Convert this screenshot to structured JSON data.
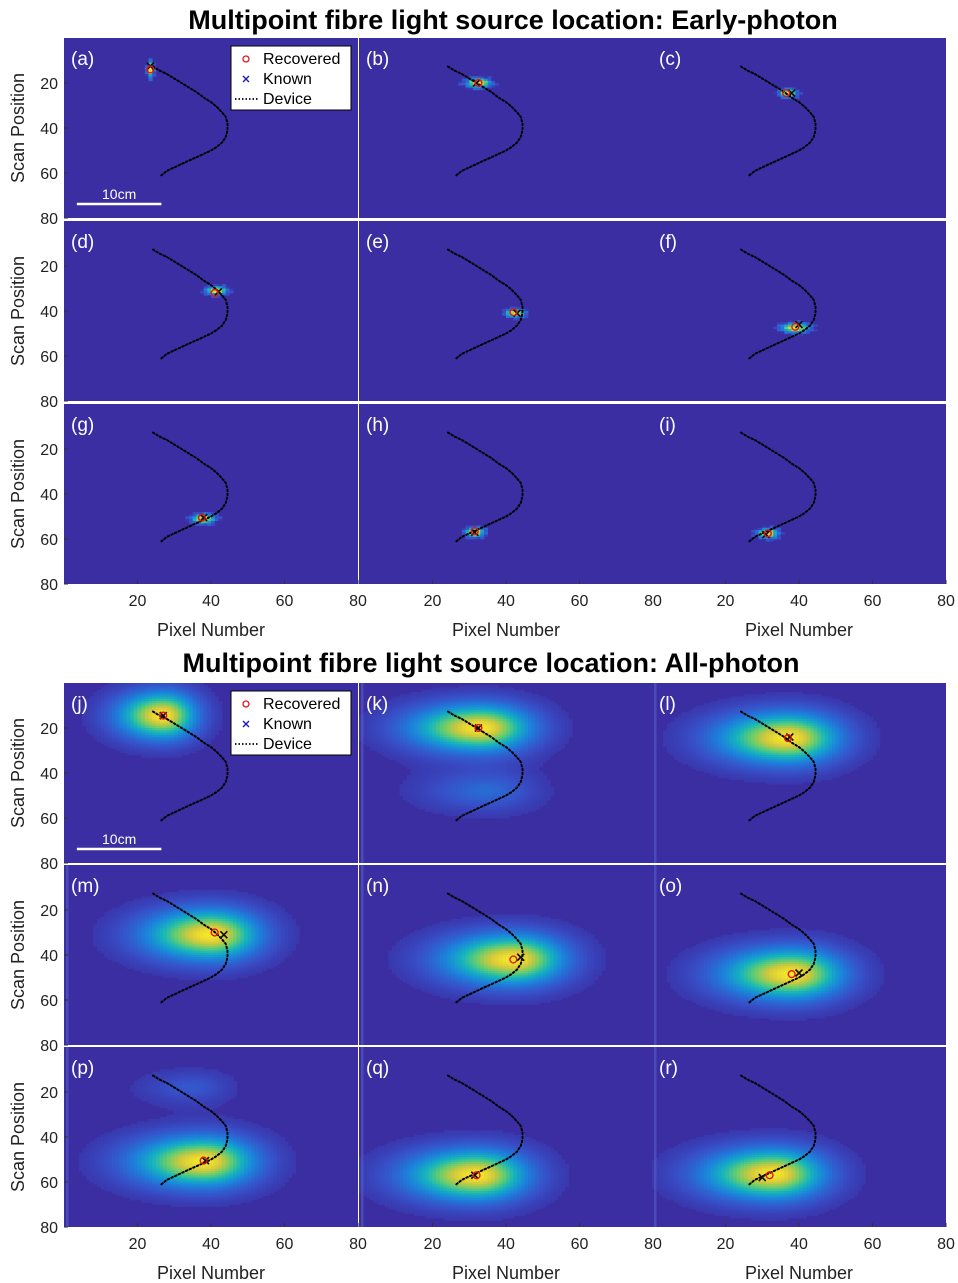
{
  "figure": {
    "sections": [
      {
        "title": "Multipoint fibre light source location: Early-photon",
        "mode": "early"
      },
      {
        "title": "Multipoint fibre light source location: All-photon",
        "mode": "all"
      }
    ],
    "xlabel": "Pixel Number",
    "ylabel": "Scan Position",
    "xticks": [
      20,
      40,
      60,
      80
    ],
    "yticks": [
      20,
      40,
      60,
      80
    ],
    "xlim": [
      0,
      80
    ],
    "ylim": [
      0,
      80
    ],
    "legend": {
      "recovered": "Recovered",
      "known": "Known",
      "device": "Device",
      "placement": "top-right of first panel"
    },
    "scalebar_label": "10cm",
    "scalebar_length": 23,
    "colors": {
      "background": "#3b2ea3",
      "recovered": "#e01818",
      "known": "#1b1bbd",
      "device": "#000000"
    }
  },
  "chart_data": {
    "type": "heatmap",
    "device_path": [
      [
        26.5,
        61
      ],
      [
        28,
        59
      ],
      [
        30,
        57.5
      ],
      [
        32,
        56
      ],
      [
        34,
        54.5
      ],
      [
        36,
        53
      ],
      [
        38,
        51.5
      ],
      [
        40,
        50
      ],
      [
        41.5,
        48.5
      ],
      [
        43,
        46.5
      ],
      [
        44,
        44
      ],
      [
        44.5,
        41
      ],
      [
        44.5,
        38
      ],
      [
        44,
        35
      ],
      [
        43,
        33
      ],
      [
        41.5,
        30.5
      ],
      [
        40,
        28.5
      ],
      [
        38,
        26.5
      ],
      [
        36,
        24
      ],
      [
        34,
        22
      ],
      [
        32,
        20
      ],
      [
        30,
        18
      ],
      [
        28,
        16
      ],
      [
        26,
        14.5
      ],
      [
        24,
        12.5
      ]
    ],
    "panels": [
      {
        "label": "(a)",
        "mode": "early",
        "recovered": [
          23.5,
          14
        ],
        "known": [
          23.5,
          12.5
        ],
        "blobs": [
          {
            "x": 23.5,
            "y": 14,
            "sx": 0.7,
            "sy": 3.0,
            "a": 1.0
          }
        ]
      },
      {
        "label": "(b)",
        "mode": "early",
        "recovered": [
          32.5,
          20
        ],
        "known": [
          32,
          20
        ],
        "blobs": [
          {
            "x": 32.5,
            "y": 20,
            "sx": 2.8,
            "sy": 1.8,
            "a": 1.0
          }
        ]
      },
      {
        "label": "(c)",
        "mode": "early",
        "recovered": [
          36.5,
          24.5
        ],
        "known": [
          38,
          24.5
        ],
        "blobs": [
          {
            "x": 37,
            "y": 24.5,
            "sx": 2.0,
            "sy": 1.6,
            "a": 1.0
          }
        ]
      },
      {
        "label": "(d)",
        "mode": "early",
        "recovered": [
          41,
          32
        ],
        "known": [
          42,
          31.5
        ],
        "blobs": [
          {
            "x": 41.5,
            "y": 31,
            "sx": 2.4,
            "sy": 1.6,
            "a": 1.0
          }
        ]
      },
      {
        "label": "(e)",
        "mode": "early",
        "recovered": [
          42,
          40.5
        ],
        "known": [
          43,
          41
        ],
        "blobs": [
          {
            "x": 42.5,
            "y": 41,
            "sx": 2.2,
            "sy": 1.5,
            "a": 1.0
          }
        ]
      },
      {
        "label": "(f)",
        "mode": "early",
        "recovered": [
          39,
          47
        ],
        "known": [
          40,
          46
        ],
        "blobs": [
          {
            "x": 39,
            "y": 47.5,
            "sx": 3.2,
            "sy": 1.8,
            "a": 1.0
          }
        ]
      },
      {
        "label": "(g)",
        "mode": "early",
        "recovered": [
          37.5,
          50.5
        ],
        "known": [
          38,
          50.5
        ],
        "blobs": [
          {
            "x": 38,
            "y": 51,
            "sx": 2.6,
            "sy": 1.8,
            "a": 1.0
          }
        ]
      },
      {
        "label": "(h)",
        "mode": "early",
        "recovered": [
          31.5,
          56.5
        ],
        "known": [
          31.5,
          57
        ],
        "blobs": [
          {
            "x": 31.5,
            "y": 57,
            "sx": 2.2,
            "sy": 1.8,
            "a": 1.0
          }
        ]
      },
      {
        "label": "(i)",
        "mode": "early",
        "recovered": [
          31.5,
          57.5
        ],
        "known": [
          31,
          58
        ],
        "blobs": [
          {
            "x": 31.5,
            "y": 57.5,
            "sx": 2.4,
            "sy": 1.8,
            "a": 1.0
          }
        ]
      },
      {
        "label": "(j)",
        "mode": "all",
        "recovered": [
          27,
          14.5
        ],
        "known": [
          27,
          14.5
        ],
        "blobs": [
          {
            "x": 27,
            "y": 14.5,
            "sx": 6.5,
            "sy": 6.5,
            "a": 1.0
          }
        ]
      },
      {
        "label": "(k)",
        "mode": "all",
        "recovered": [
          32.5,
          20
        ],
        "known": [
          32.5,
          20
        ],
        "blobs": [
          {
            "x": 33,
            "y": 20,
            "sx": 10,
            "sy": 6.5,
            "a": 1.0
          },
          {
            "x": 35,
            "y": 48,
            "sx": 10,
            "sy": 6,
            "a": 0.22
          }
        ]
      },
      {
        "label": "(l)",
        "mode": "all",
        "recovered": [
          37,
          24.5
        ],
        "known": [
          37.5,
          24
        ],
        "blobs": [
          {
            "x": 37,
            "y": 24.5,
            "sx": 10,
            "sy": 7,
            "a": 1.0
          }
        ]
      },
      {
        "label": "(m)",
        "mode": "all",
        "recovered": [
          41,
          30
        ],
        "known": [
          43.5,
          31
        ],
        "blobs": [
          {
            "x": 40,
            "y": 31,
            "sx": 9.5,
            "sy": 7,
            "a": 1.0
          }
        ]
      },
      {
        "label": "(n)",
        "mode": "all",
        "recovered": [
          42,
          42
        ],
        "known": [
          44,
          41
        ],
        "blobs": [
          {
            "x": 42,
            "y": 42,
            "sx": 10,
            "sy": 7,
            "a": 1.0
          }
        ]
      },
      {
        "label": "(o)",
        "mode": "all",
        "recovered": [
          38,
          48.5
        ],
        "known": [
          40,
          48
        ],
        "blobs": [
          {
            "x": 38,
            "y": 48.5,
            "sx": 10,
            "sy": 7,
            "a": 1.0
          }
        ]
      },
      {
        "label": "(p)",
        "mode": "all",
        "recovered": [
          38,
          50.5
        ],
        "known": [
          38.5,
          50.5
        ],
        "blobs": [
          {
            "x": 38,
            "y": 51,
            "sx": 10,
            "sy": 7,
            "a": 1.0
          },
          {
            "x": 35,
            "y": 18,
            "sx": 8,
            "sy": 5,
            "a": 0.15
          }
        ]
      },
      {
        "label": "(q)",
        "mode": "all",
        "recovered": [
          32,
          57
        ],
        "known": [
          31.5,
          57
        ],
        "blobs": [
          {
            "x": 32,
            "y": 57,
            "sx": 10,
            "sy": 7,
            "a": 1.0
          }
        ]
      },
      {
        "label": "(r)",
        "mode": "all",
        "recovered": [
          32,
          57
        ],
        "known": [
          30,
          58
        ],
        "blobs": [
          {
            "x": 33,
            "y": 56.5,
            "sx": 10,
            "sy": 7,
            "a": 1.0
          }
        ]
      }
    ]
  }
}
